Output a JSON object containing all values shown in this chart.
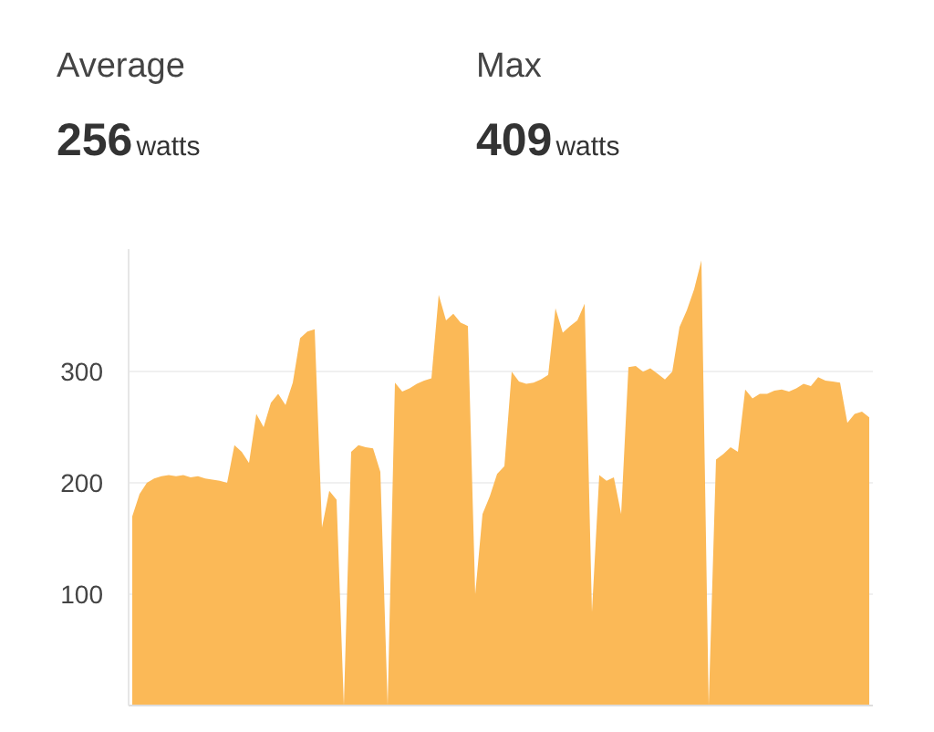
{
  "chart_data": {
    "type": "area",
    "annotations": [
      "Average",
      "256",
      "watts",
      "Max",
      "409",
      "watts"
    ],
    "categories": [
      null,
      null,
      null,
      null,
      null,
      null,
      null,
      null,
      null,
      null,
      null,
      null,
      null,
      null,
      null,
      null,
      null,
      null,
      null,
      null,
      null,
      null,
      null,
      null,
      null,
      null,
      null,
      null,
      null,
      null,
      null,
      null,
      null,
      null,
      null,
      null,
      null,
      null,
      null,
      null,
      null,
      null,
      null,
      null,
      null,
      null,
      null,
      null,
      null,
      null,
      null,
      null,
      null,
      null,
      null,
      null,
      null,
      null,
      null,
      null,
      null,
      null,
      null,
      null,
      null,
      null,
      null,
      null,
      null,
      null,
      null,
      null,
      null,
      null,
      null,
      null,
      null,
      null,
      null,
      null,
      null,
      null,
      null,
      null,
      null,
      null,
      null,
      null,
      null,
      null,
      null,
      null,
      null,
      null,
      null,
      null,
      null,
      null,
      null,
      null,
      null,
      null
    ],
    "series": [
      {
        "color": "#fbb957",
        "values": [
          170,
          190,
          200,
          204,
          206,
          207,
          206,
          207,
          205,
          206,
          204,
          203,
          202,
          200,
          234,
          228,
          218,
          262,
          250,
          272,
          280,
          270,
          290,
          330,
          336,
          338,
          160,
          193,
          185,
          0,
          228,
          234,
          232,
          231,
          210,
          0,
          290,
          282,
          285,
          289,
          292,
          294,
          369,
          346,
          352,
          344,
          341,
          100,
          172,
          188,
          208,
          215,
          300,
          291,
          289,
          290,
          293,
          297,
          357,
          335,
          341,
          346,
          361,
          84,
          207,
          202,
          205,
          172,
          304,
          305,
          300,
          303,
          298,
          293,
          300,
          340,
          355,
          374,
          400,
          0,
          221,
          226,
          232,
          228,
          284,
          276,
          280,
          280,
          283,
          284,
          282,
          285,
          289,
          287,
          295,
          292,
          291,
          290,
          254,
          262,
          264,
          259
        ]
      }
    ],
    "ylim": [
      0,
      410
    ],
    "yticks": [
      100,
      200,
      300
    ],
    "grid": "y"
  }
}
